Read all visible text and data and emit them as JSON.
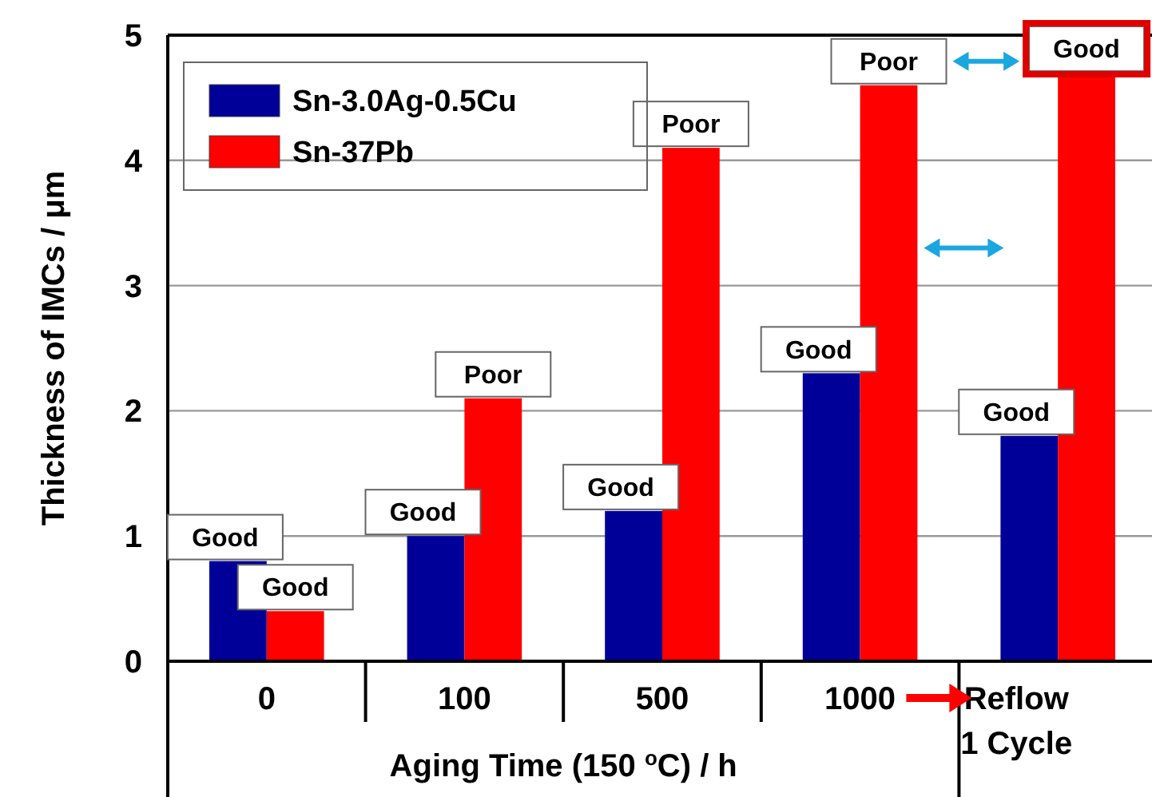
{
  "chart_data": {
    "type": "bar",
    "ylabel": "Thickness of IMCs / μm",
    "xlabel": "Aging Time (150 $^{o}$C) / h",
    "categories": [
      "0",
      "100",
      "500",
      "1000",
      "Reflow\n1 Cycle"
    ],
    "series": [
      {
        "name": "Sn-3.0Ag-0.5Cu",
        "color": "#000099",
        "values": [
          0.8,
          1.0,
          1.2,
          2.3,
          1.8
        ]
      },
      {
        "name": "Sn-37Pb",
        "color": "#ff0000",
        "values": [
          0.4,
          2.1,
          4.1,
          4.6,
          4.7
        ]
      }
    ],
    "ylim": [
      0,
      5
    ],
    "yticks": [
      0,
      1,
      2,
      3,
      4,
      5
    ],
    "grid": "y",
    "legend": "top left",
    "annotations": [
      "Good",
      "Good",
      "Good",
      "Poor",
      "Good",
      "Poor",
      "Good",
      "Poor",
      "Good",
      "Good"
    ]
  }
}
